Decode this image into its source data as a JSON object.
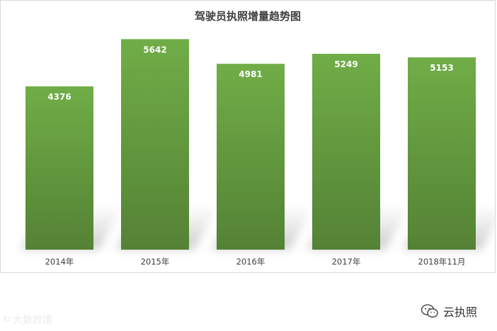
{
  "chart_data": {
    "type": "bar",
    "title": "驾驶员执照增量趋势图",
    "categories": [
      "2014年",
      "2015年",
      "2016年",
      "2017年",
      "2018年11月"
    ],
    "values": [
      4376,
      5642,
      4981,
      5249,
      5153
    ],
    "ylim": [
      0,
      5800
    ],
    "grid": false,
    "legend": "none",
    "colors": {
      "bar_top": "#70ad47",
      "bar_bottom": "#548235",
      "label_text": "#ffffff",
      "title_text": "#404040",
      "tick_text": "#404040",
      "shadow": "#c8c8c8"
    }
  },
  "watermarks": {
    "left_text": "大数跨境",
    "right_text": "云执照",
    "right_icon": "wechat-icon",
    "left_icon": "brand-logo-icon"
  }
}
